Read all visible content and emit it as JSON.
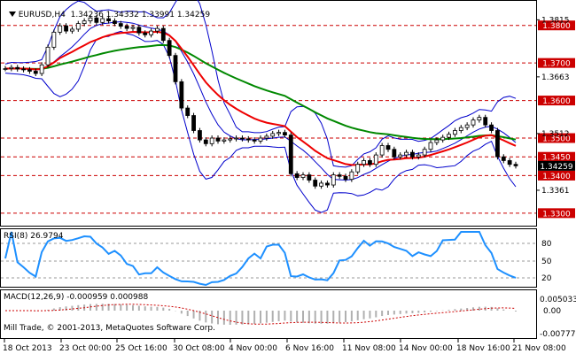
{
  "header": {
    "symbol": "EURUSD,H4",
    "ohlc": "1.34236 1.34332 1.33991 1.34259"
  },
  "rsi_panel": {
    "label": "RSI(8) 26.9794",
    "levels": [
      "80",
      "50",
      "20"
    ]
  },
  "macd_panel": {
    "label": "MACD(12,26,9) -0.000959 0.000988",
    "levels": [
      "0.005033",
      "0.00",
      "-0.007775"
    ]
  },
  "copyright": "Mill Trade, © 2001-2013, MetaQuotes Software Corp.",
  "current_price": "1.34259",
  "colors": {
    "candles": "#000000",
    "bollinger": "#0000cc",
    "ma_red": "#ee0000",
    "ma_green": "#008800",
    "levels": "#cc0000",
    "rsi": "#1e90ff",
    "macd_signal": "#cc0000",
    "macd_hist": "#b0b0b0",
    "grid": "#999999",
    "price_box": "#000000"
  },
  "chart_data": {
    "type": "line",
    "x_tick_labels": [
      "18 Oct 2013",
      "23 Oct 00:00",
      "25 Oct 16:00",
      "30 Oct 08:00",
      "4 Nov 00:00",
      "6 Nov 16:00",
      "11 Nov 08:00",
      "14 Nov 00:00",
      "18 Nov 16:00",
      "21 Nov 08:00"
    ],
    "y_range": [
      1.3269,
      1.3863
    ],
    "y_tick_labels": [
      "1.3815",
      "1.3663",
      "1.3512",
      "1.3361"
    ],
    "y_level_labels": [
      "1.3800",
      "1.3700",
      "1.3600",
      "1.3500",
      "1.3450",
      "1.3400",
      "1.3300"
    ],
    "levels": [
      1.38,
      1.37,
      1.36,
      1.35,
      1.345,
      1.34,
      1.33
    ],
    "series": [
      {
        "values": [
          1.3685,
          1.3688,
          1.3684,
          1.3682,
          1.3678,
          1.3672,
          1.3695,
          1.3742,
          1.3782,
          1.3799,
          1.3785,
          1.379,
          1.3805,
          1.3812,
          1.382,
          1.3808,
          1.3818,
          1.3812,
          1.3805,
          1.3798,
          1.3792,
          1.3795,
          1.378,
          1.3775,
          1.3785,
          1.3792,
          1.376,
          1.372,
          1.365,
          1.358,
          1.356,
          1.352,
          1.3495,
          1.3485,
          1.35,
          1.3492,
          1.3495,
          1.3498,
          1.35,
          1.3498,
          1.3495,
          1.3492,
          1.35,
          1.3505,
          1.3512,
          1.3515,
          1.3508,
          1.3405,
          1.3395,
          1.3402,
          1.3388,
          1.3372,
          1.338,
          1.3375,
          1.3402,
          1.3398,
          1.339,
          1.341,
          1.343,
          1.344,
          1.343,
          1.3455,
          1.348,
          1.347,
          1.345,
          1.3455,
          1.3462,
          1.345,
          1.3455,
          1.347,
          1.3488,
          1.3495,
          1.3502,
          1.351,
          1.352,
          1.3528,
          1.3535,
          1.3548,
          1.3555,
          1.3535,
          1.352,
          1.345,
          1.344,
          1.343,
          1.3426
        ]
      }
    ]
  }
}
